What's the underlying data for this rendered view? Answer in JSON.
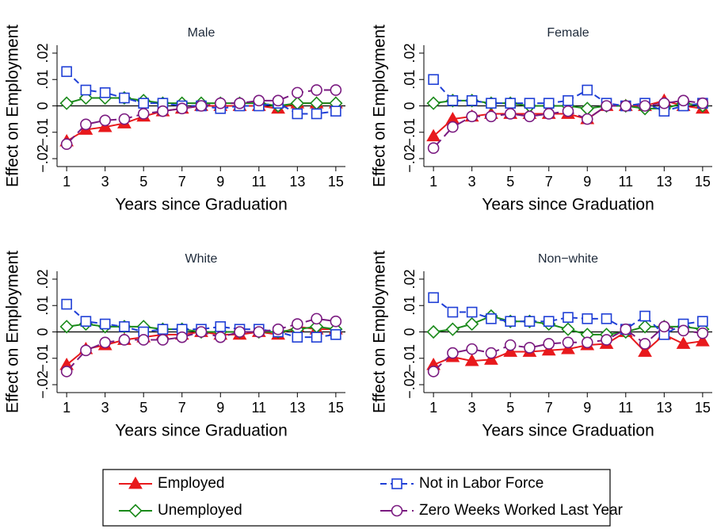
{
  "chart_data": [
    {
      "type": "line",
      "title": "Male",
      "xlabel": "Years since Graduation",
      "ylabel": "Effect on Employment",
      "x": [
        1,
        2,
        3,
        4,
        5,
        6,
        7,
        8,
        9,
        10,
        11,
        12,
        13,
        14,
        15
      ],
      "xlim": [
        0.5,
        15.5
      ],
      "xticks": [
        1,
        3,
        5,
        7,
        9,
        11,
        13,
        15
      ],
      "ylim": [
        -0.023,
        0.023
      ],
      "yticks": [
        {
          "value": -0.02,
          "label": "−.02"
        },
        {
          "value": -0.01,
          "label": "−.01"
        },
        {
          "value": 0,
          "label": "0"
        },
        {
          "value": 0.01,
          "label": ".01"
        },
        {
          "value": 0.02,
          "label": ".02"
        }
      ],
      "series": [
        {
          "name": "Employed",
          "color": "#e8191c",
          "marker": "triangle",
          "dash": "solid",
          "values": [
            -0.0134,
            -0.009,
            -0.008,
            -0.0066,
            -0.004,
            -0.002,
            -0.001,
            0,
            0,
            0,
            0,
            -0.001,
            0.001,
            0.001,
            0.001
          ]
        },
        {
          "name": "Unemployed",
          "color": "#1a8a1a",
          "marker": "diamond",
          "dash": "solid",
          "values": [
            0.001,
            0.003,
            0.003,
            0.003,
            0.002,
            0.001,
            0.001,
            0.001,
            0.001,
            0.001,
            0.001,
            0,
            0.001,
            0.001,
            0.001
          ]
        },
        {
          "name": "Not in Labor Force",
          "color": "#1f3fd6",
          "marker": "square",
          "dash": "dashed",
          "values": [
            0.013,
            0.006,
            0.005,
            0.003,
            0.001,
            0.001,
            0,
            0,
            -0.001,
            0,
            0,
            0.001,
            -0.003,
            -0.003,
            -0.002
          ]
        },
        {
          "name": "Zero Weeks Worked Last Year",
          "color": "#7a1a80",
          "marker": "circle",
          "dash": "longdash",
          "values": [
            -0.0145,
            -0.007,
            -0.0055,
            -0.005,
            -0.003,
            -0.002,
            -0.001,
            0,
            0.001,
            0.001,
            0.002,
            0.002,
            0.005,
            0.006,
            0.006
          ]
        }
      ]
    },
    {
      "type": "line",
      "title": "Female",
      "xlabel": "Years since Graduation",
      "ylabel": "Effect on Employment",
      "x": [
        1,
        2,
        3,
        4,
        5,
        6,
        7,
        8,
        9,
        10,
        11,
        12,
        13,
        14,
        15
      ],
      "xlim": [
        0.5,
        15.5
      ],
      "xticks": [
        1,
        3,
        5,
        7,
        9,
        11,
        13,
        15
      ],
      "ylim": [
        -0.023,
        0.023
      ],
      "yticks": [
        {
          "value": -0.02,
          "label": "−.02"
        },
        {
          "value": -0.01,
          "label": "−.01"
        },
        {
          "value": 0,
          "label": "0"
        },
        {
          "value": 0.01,
          "label": ".01"
        },
        {
          "value": 0.02,
          "label": ".02"
        }
      ],
      "series": [
        {
          "name": "Employed",
          "color": "#e8191c",
          "marker": "triangle",
          "dash": "solid",
          "values": [
            -0.0115,
            -0.005,
            -0.004,
            -0.003,
            -0.003,
            -0.003,
            -0.003,
            -0.003,
            -0.005,
            0,
            0,
            0,
            0.002,
            0,
            -0.001
          ]
        },
        {
          "name": "Unemployed",
          "color": "#1a8a1a",
          "marker": "diamond",
          "dash": "solid",
          "values": [
            0.001,
            0.002,
            0.002,
            0.001,
            0.001,
            0,
            0,
            0,
            -0.001,
            0,
            0,
            -0.001,
            -0.001,
            0.001,
            0
          ]
        },
        {
          "name": "Not in Labor Force",
          "color": "#1f3fd6",
          "marker": "square",
          "dash": "dashed",
          "values": [
            0.01,
            0.002,
            0.002,
            0.001,
            0.001,
            0.001,
            0.001,
            0.002,
            0.006,
            0.001,
            0,
            0.001,
            -0.002,
            0,
            0.001
          ]
        },
        {
          "name": "Zero Weeks Worked Last Year",
          "color": "#7a1a80",
          "marker": "circle",
          "dash": "longdash",
          "values": [
            -0.016,
            -0.008,
            -0.004,
            -0.004,
            -0.003,
            -0.004,
            -0.003,
            -0.002,
            -0.005,
            0,
            0,
            0,
            0.001,
            0.002,
            0.001
          ]
        }
      ]
    },
    {
      "type": "line",
      "title": "White",
      "xlabel": "Years since Graduation",
      "ylabel": "Effect on Employment",
      "x": [
        1,
        2,
        3,
        4,
        5,
        6,
        7,
        8,
        9,
        10,
        11,
        12,
        13,
        14,
        15
      ],
      "xlim": [
        0.5,
        15.5
      ],
      "xticks": [
        1,
        3,
        5,
        7,
        9,
        11,
        13,
        15
      ],
      "ylim": [
        -0.023,
        0.023
      ],
      "yticks": [
        {
          "value": -0.02,
          "label": "−.02"
        },
        {
          "value": -0.01,
          "label": "−.01"
        },
        {
          "value": 0,
          "label": "0"
        },
        {
          "value": 0.01,
          "label": ".01"
        },
        {
          "value": 0.02,
          "label": ".02"
        }
      ],
      "series": [
        {
          "name": "Employed",
          "color": "#e8191c",
          "marker": "triangle",
          "dash": "solid",
          "values": [
            -0.0125,
            -0.0065,
            -0.005,
            -0.003,
            -0.002,
            -0.001,
            -0.001,
            0,
            -0.001,
            -0.001,
            0,
            -0.001,
            0.002,
            0.001,
            0.001
          ]
        },
        {
          "name": "Unemployed",
          "color": "#1a8a1a",
          "marker": "diamond",
          "dash": "solid",
          "values": [
            0.002,
            0.003,
            0.002,
            0.002,
            0.002,
            0.001,
            0.001,
            0,
            0,
            0,
            0,
            0,
            0.001,
            0.002,
            0.001
          ]
        },
        {
          "name": "Not in Labor Force",
          "color": "#1f3fd6",
          "marker": "square",
          "dash": "dashed",
          "values": [
            0.0105,
            0.004,
            0.003,
            0.002,
            0,
            0.001,
            0.001,
            0.001,
            0.002,
            0.001,
            0.001,
            0,
            -0.002,
            -0.002,
            -0.001
          ]
        },
        {
          "name": "Zero Weeks Worked Last Year",
          "color": "#7a1a80",
          "marker": "circle",
          "dash": "longdash",
          "values": [
            -0.015,
            -0.007,
            -0.004,
            -0.003,
            -0.003,
            -0.003,
            -0.002,
            0,
            -0.002,
            0,
            0,
            0.001,
            0.003,
            0.005,
            0.004
          ]
        }
      ]
    },
    {
      "type": "line",
      "title": "Non−white",
      "xlabel": "Years since Graduation",
      "ylabel": "Effect on Employment",
      "x": [
        1,
        2,
        3,
        4,
        5,
        6,
        7,
        8,
        9,
        10,
        11,
        12,
        13,
        14,
        15
      ],
      "xlim": [
        0.5,
        15.5
      ],
      "xticks": [
        1,
        3,
        5,
        7,
        9,
        11,
        13,
        15
      ],
      "ylim": [
        -0.023,
        0.023
      ],
      "yticks": [
        {
          "value": -0.02,
          "label": "−.02"
        },
        {
          "value": -0.01,
          "label": "−.01"
        },
        {
          "value": 0,
          "label": "0"
        },
        {
          "value": 0.01,
          "label": ".01"
        },
        {
          "value": 0.02,
          "label": ".02"
        }
      ],
      "series": [
        {
          "name": "Employed",
          "color": "#e8191c",
          "marker": "triangle",
          "dash": "solid",
          "values": [
            -0.0125,
            -0.0095,
            -0.011,
            -0.0105,
            -0.0075,
            -0.0075,
            -0.007,
            -0.0065,
            -0.005,
            -0.0045,
            0,
            -0.0075,
            -0.001,
            -0.0045,
            -0.0035
          ]
        },
        {
          "name": "Unemployed",
          "color": "#1a8a1a",
          "marker": "diamond",
          "dash": "solid",
          "values": [
            0,
            0.001,
            0.003,
            0.006,
            0.004,
            0.004,
            0.003,
            0.001,
            -0.001,
            -0.001,
            0,
            0.002,
            0.002,
            0.002,
            0.001
          ]
        },
        {
          "name": "Not in Labor Force",
          "color": "#1f3fd6",
          "marker": "square",
          "dash": "dashed",
          "values": [
            0.013,
            0.0075,
            0.0075,
            0.005,
            0.004,
            0.004,
            0.004,
            0.0055,
            0.005,
            0.005,
            0.001,
            0.006,
            -0.001,
            0.003,
            0.004
          ]
        },
        {
          "name": "Zero Weeks Worked Last Year",
          "color": "#7a1a80",
          "marker": "circle",
          "dash": "longdash",
          "values": [
            -0.015,
            -0.008,
            -0.0065,
            -0.008,
            -0.005,
            -0.006,
            -0.0045,
            -0.004,
            -0.004,
            -0.003,
            0.001,
            -0.0045,
            0.002,
            0.0005,
            -0.0005
          ]
        }
      ]
    }
  ]
}
